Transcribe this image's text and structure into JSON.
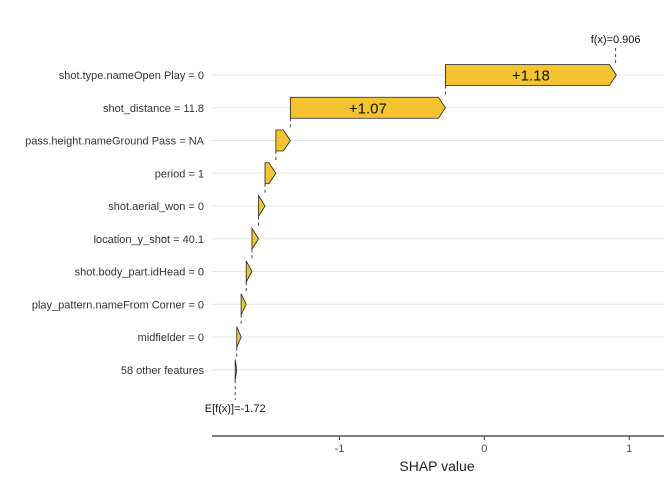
{
  "chart_data": {
    "type": "waterfall",
    "xlabel": "SHAP value",
    "xlim": [
      -1.88,
      1.24
    ],
    "x_ticks": [
      {
        "value": -1,
        "label": "-1"
      },
      {
        "value": 0,
        "label": "0"
      },
      {
        "value": 1,
        "label": "1"
      }
    ],
    "base_value": -1.72,
    "base_label": "E[f(x)]=-1.72",
    "final_value": 0.906,
    "final_label": "f(x)=0.906",
    "bar_color": "#F4C430",
    "grid": true,
    "features": [
      {
        "label": "shot.type.nameOpen Play = 0",
        "value": 1.18,
        "value_label": "+1.18"
      },
      {
        "label": "shot_distance = 11.8",
        "value": 1.07,
        "value_label": "+1.07"
      },
      {
        "label": "pass.height.nameGround Pass = NA",
        "value": 0.1
      },
      {
        "label": "period = 1",
        "value": 0.075
      },
      {
        "label": "shot.aerial_won = 0",
        "value": 0.045
      },
      {
        "label": "location_y_shot = 40.1",
        "value": 0.045
      },
      {
        "label": "shot.body_part.idHead = 0",
        "value": 0.04
      },
      {
        "label": "play_pattern.nameFrom Corner = 0",
        "value": 0.035
      },
      {
        "label": "midfielder = 0",
        "value": 0.03
      },
      {
        "label": "58 other features",
        "value": 0.011
      }
    ]
  }
}
